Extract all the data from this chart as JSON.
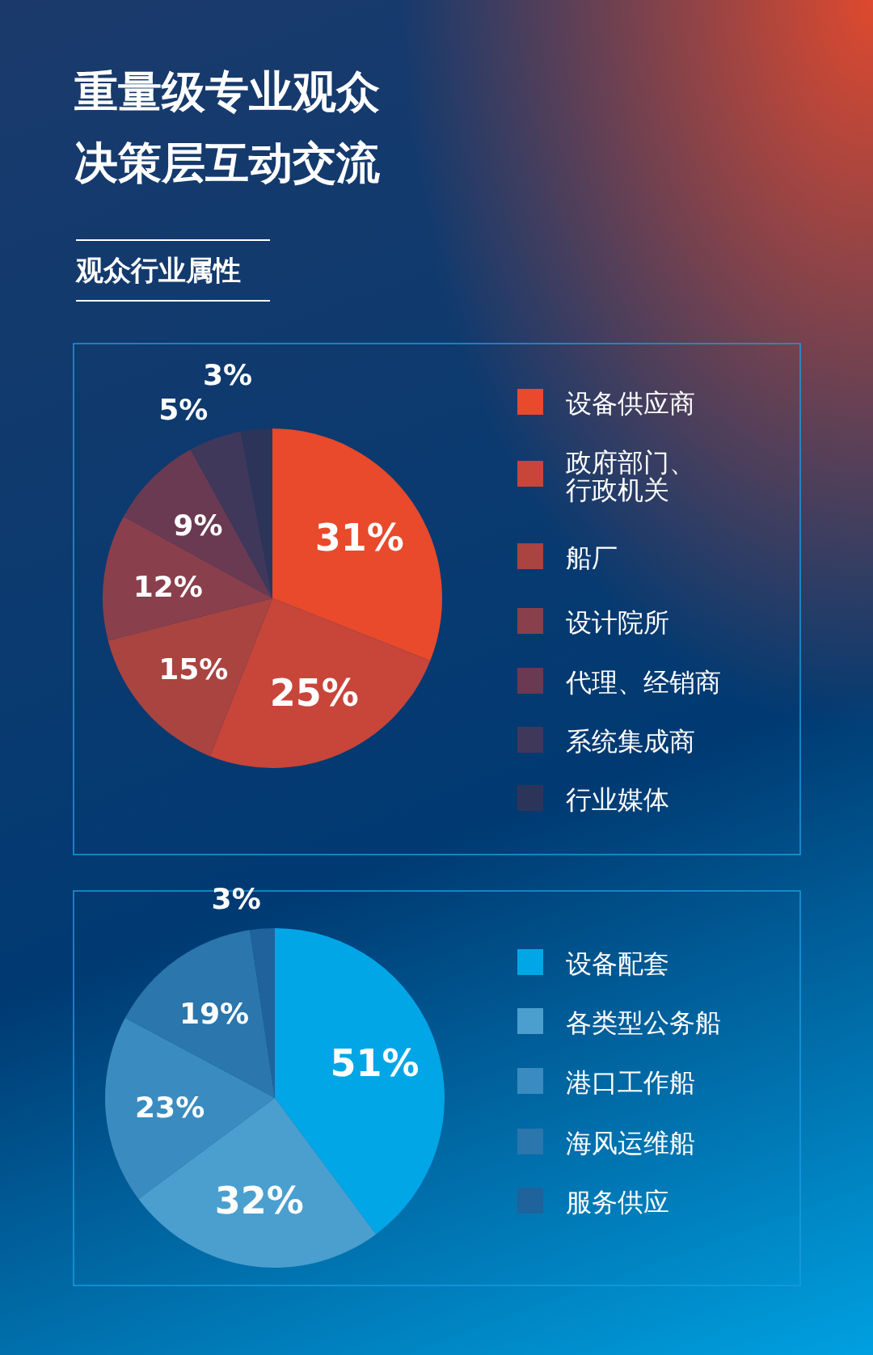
{
  "chart_data": [
    {
      "type": "pie",
      "title": "重量级专业观众",
      "subtitle": "决策层互动交流",
      "annotations": [
        "观众行业属性"
      ],
      "categories": [
        "设备供应商",
        "政府部门、行政机关",
        "船厂",
        "设计院所",
        "代理、经销商",
        "系统集成商",
        "行业媒体"
      ],
      "values": [
        31,
        25,
        15,
        12,
        9,
        5,
        3
      ],
      "value_labels": [
        "31%",
        "25%",
        "15%",
        "12%",
        "9%",
        "5%",
        "3%"
      ],
      "colors": [
        "#e84a2b",
        "#c8453a",
        "#a94440",
        "#8a3f4c",
        "#6a3a52",
        "#40385a",
        "#2d3459"
      ],
      "legend": "right"
    },
    {
      "type": "pie",
      "categories": [
        "设备配套",
        "各类型公务船",
        "港口工作船",
        "海风运维船",
        "服务供应"
      ],
      "values": [
        51,
        32,
        23,
        19,
        3
      ],
      "value_labels": [
        "51%",
        "32%",
        "23%",
        "19%",
        "3%"
      ],
      "colors": [
        "#00a6e6",
        "#4a9fcf",
        "#3a8cc0",
        "#2a76ad",
        "#1f629c"
      ],
      "legend": "right"
    }
  ]
}
